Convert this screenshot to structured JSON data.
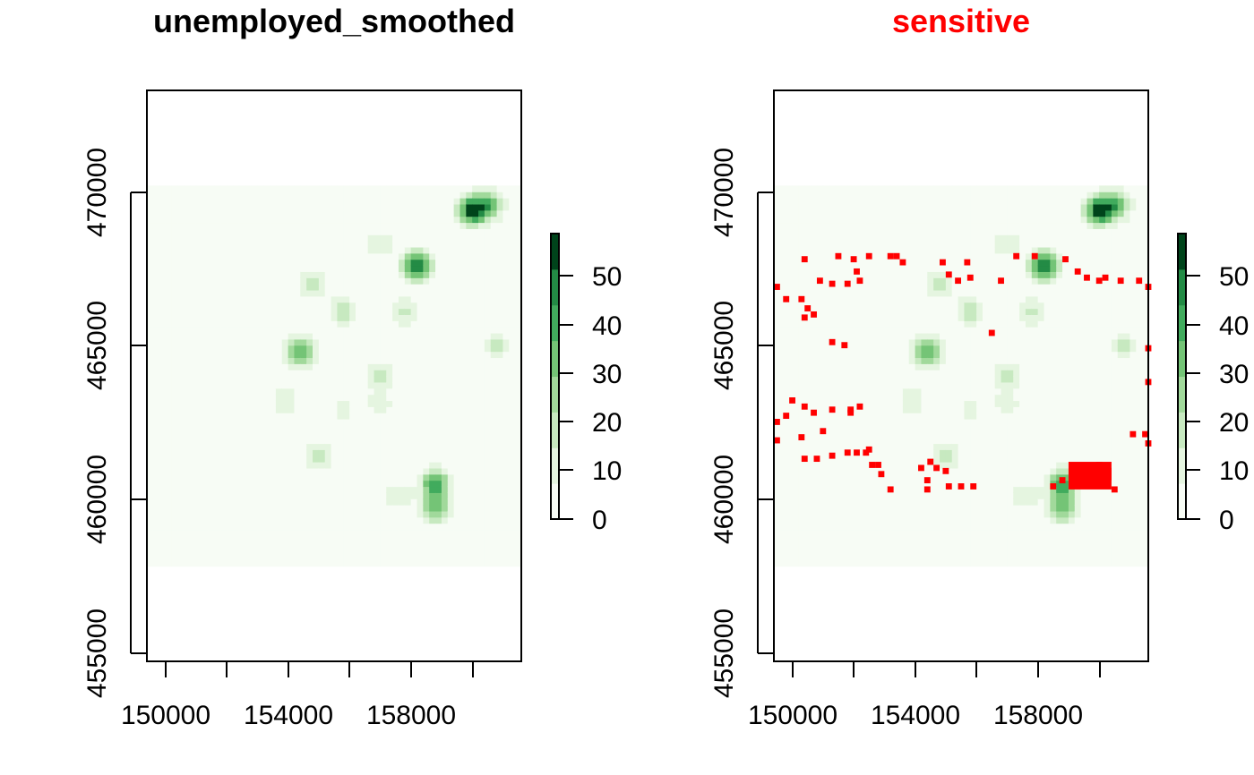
{
  "figure": {
    "panels": [
      {
        "title": "unemployed_smoothed",
        "title_color": "#000000",
        "x_ticks": [
          "150000",
          "154000",
          "158000"
        ],
        "y_ticks": [
          "455000",
          "460000",
          "465000",
          "470000"
        ],
        "legend_ticks": [
          "0",
          "10",
          "20",
          "30",
          "40",
          "50"
        ]
      },
      {
        "title": "sensitive",
        "title_color": "#ff0000",
        "x_ticks": [
          "150000",
          "154000",
          "158000"
        ],
        "y_ticks": [
          "455000",
          "460000",
          "465000",
          "470000"
        ],
        "legend_ticks": [
          "0",
          "10",
          "20",
          "30",
          "40",
          "50"
        ]
      }
    ]
  },
  "chart_data": {
    "type": "heatmap",
    "x_range": [
      149400,
      161600
    ],
    "y_range": [
      454700,
      473300
    ],
    "data_extent": {
      "x": [
        149400,
        161600
      ],
      "y": [
        457800,
        470200
      ]
    },
    "x_ticks": [
      150000,
      152000,
      154000,
      156000,
      158000,
      160000
    ],
    "y_ticks": [
      455000,
      460000,
      465000,
      470000
    ],
    "colorbar": {
      "range": [
        0,
        58
      ],
      "ticks": [
        0,
        10,
        20,
        30,
        40,
        50
      ],
      "colors": [
        "#f7fcf5",
        "#e5f5e0",
        "#c7e9c0",
        "#a1d99b",
        "#74c476",
        "#41ab5d",
        "#238b45",
        "#00441b"
      ]
    },
    "background_value": 1,
    "hotspots": [
      {
        "x": 160000,
        "y": 469400,
        "peak": 55
      },
      {
        "x": 160600,
        "y": 469600,
        "peak": 30
      },
      {
        "x": 158200,
        "y": 467600,
        "peak": 50
      },
      {
        "x": 158800,
        "y": 460500,
        "peak": 42
      },
      {
        "x": 158800,
        "y": 459700,
        "peak": 32
      },
      {
        "x": 154400,
        "y": 464800,
        "peak": 35
      },
      {
        "x": 154800,
        "y": 467000,
        "peak": 20
      },
      {
        "x": 155800,
        "y": 466100,
        "peak": 20
      },
      {
        "x": 157800,
        "y": 466100,
        "peak": 16
      },
      {
        "x": 157000,
        "y": 464000,
        "peak": 16
      },
      {
        "x": 157000,
        "y": 468300,
        "peak": 12
      },
      {
        "x": 160800,
        "y": 465000,
        "peak": 15
      },
      {
        "x": 153900,
        "y": 463200,
        "peak": 13
      },
      {
        "x": 155000,
        "y": 461400,
        "peak": 18
      },
      {
        "x": 157600,
        "y": 460100,
        "peak": 12
      },
      {
        "x": 155800,
        "y": 462900,
        "peak": 9
      },
      {
        "x": 157000,
        "y": 463100,
        "peak": 10
      }
    ],
    "sensitive_overlay": {
      "color": "#ff0000",
      "points": [
        [
          150300,
          467700
        ],
        [
          151400,
          467800
        ],
        [
          151900,
          467700
        ],
        [
          152400,
          467800
        ],
        [
          153100,
          467800
        ],
        [
          153300,
          467800
        ],
        [
          153500,
          467600
        ],
        [
          152000,
          467300
        ],
        [
          152100,
          467000
        ],
        [
          151700,
          466900
        ],
        [
          151200,
          466900
        ],
        [
          150800,
          467000
        ],
        [
          149400,
          466800
        ],
        [
          149700,
          466400
        ],
        [
          150200,
          466400
        ],
        [
          150400,
          466100
        ],
        [
          150600,
          465900
        ],
        [
          150300,
          465800
        ],
        [
          151200,
          465000
        ],
        [
          151600,
          464900
        ],
        [
          149400,
          462400
        ],
        [
          149700,
          462600
        ],
        [
          149900,
          463100
        ],
        [
          150300,
          462900
        ],
        [
          150600,
          462700
        ],
        [
          151200,
          462800
        ],
        [
          151800,
          462800
        ],
        [
          152100,
          462900
        ],
        [
          151800,
          462700
        ],
        [
          150200,
          461900
        ],
        [
          150900,
          462100
        ],
        [
          149400,
          461800
        ],
        [
          150300,
          461200
        ],
        [
          150700,
          461200
        ],
        [
          151200,
          461300
        ],
        [
          151700,
          461400
        ],
        [
          152000,
          461400
        ],
        [
          152300,
          461400
        ],
        [
          152400,
          461500
        ],
        [
          152500,
          461000
        ],
        [
          152700,
          461000
        ],
        [
          152800,
          460700
        ],
        [
          153100,
          460200
        ],
        [
          154100,
          460900
        ],
        [
          154400,
          461100
        ],
        [
          154600,
          460900
        ],
        [
          154900,
          460800
        ],
        [
          154300,
          460500
        ],
        [
          154300,
          460200
        ],
        [
          155000,
          460300
        ],
        [
          155400,
          460300
        ],
        [
          155800,
          460300
        ],
        [
          154800,
          467600
        ],
        [
          155000,
          467200
        ],
        [
          155300,
          467000
        ],
        [
          155600,
          467600
        ],
        [
          155700,
          467100
        ],
        [
          158800,
          467700
        ],
        [
          159200,
          467300
        ],
        [
          159500,
          467100
        ],
        [
          159900,
          467000
        ],
        [
          160100,
          467100
        ],
        [
          160600,
          467000
        ],
        [
          161500,
          466800
        ],
        [
          161500,
          464800
        ],
        [
          161500,
          463700
        ],
        [
          161000,
          462000
        ],
        [
          161400,
          462000
        ],
        [
          161500,
          461700
        ],
        [
          158700,
          460500
        ],
        [
          159900,
          461000
        ],
        [
          160200,
          460800
        ],
        [
          160400,
          460200
        ],
        [
          160200,
          460600
        ],
        [
          158400,
          460300
        ],
        [
          161200,
          467000
        ],
        [
          157800,
          467800
        ],
        [
          157200,
          467800
        ],
        [
          156700,
          467000
        ],
        [
          156400,
          465300
        ]
      ],
      "blob": {
        "x": [
          159000,
          160400
        ],
        "y": [
          460300,
          461200
        ]
      }
    }
  }
}
